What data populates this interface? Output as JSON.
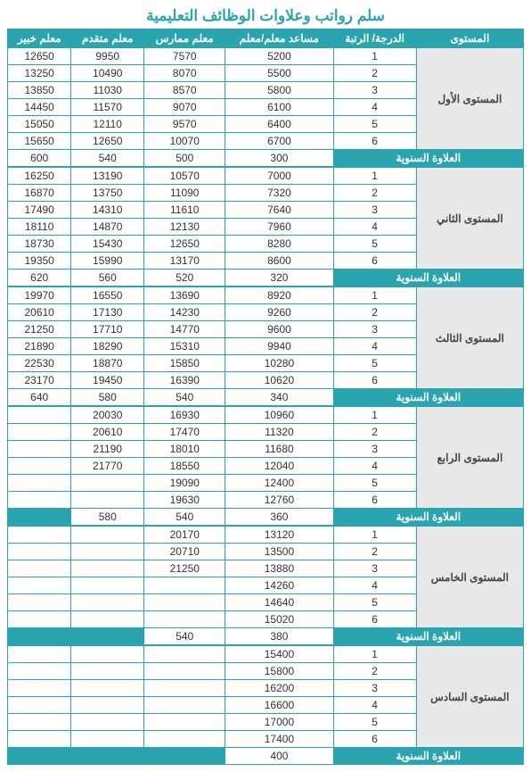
{
  "title": "سلم رواتب وعلاوات الوظائف التعليمية",
  "headers": [
    "المستوى",
    "الدرجة/ الرتبة",
    "مساعد معلم/معلم",
    "معلم ممارس",
    "معلم متقدم",
    "معلم خبير"
  ],
  "allowance_label": "العلاوة السنوية",
  "levels": [
    {
      "name": "المستوى الأول",
      "rows": [
        [
          "1",
          "5200",
          "7570",
          "9950",
          "12650"
        ],
        [
          "2",
          "5500",
          "8070",
          "10490",
          "13250"
        ],
        [
          "3",
          "5800",
          "8570",
          "11030",
          "13850"
        ],
        [
          "4",
          "6100",
          "9070",
          "11570",
          "14450"
        ],
        [
          "5",
          "6400",
          "9570",
          "12110",
          "15050"
        ],
        [
          "6",
          "6700",
          "10070",
          "12650",
          "15650"
        ]
      ],
      "allowance": [
        "300",
        "500",
        "540",
        "600"
      ]
    },
    {
      "name": "المستوى الثاني",
      "rows": [
        [
          "1",
          "7000",
          "10570",
          "13190",
          "16250"
        ],
        [
          "2",
          "7320",
          "11090",
          "13750",
          "16870"
        ],
        [
          "3",
          "7640",
          "11610",
          "14310",
          "17490"
        ],
        [
          "4",
          "7960",
          "12130",
          "14870",
          "18110"
        ],
        [
          "5",
          "8280",
          "12650",
          "15430",
          "18730"
        ],
        [
          "6",
          "8600",
          "13170",
          "15990",
          "19350"
        ]
      ],
      "allowance": [
        "320",
        "520",
        "560",
        "620"
      ]
    },
    {
      "name": "المستوى الثالث",
      "rows": [
        [
          "1",
          "8920",
          "13690",
          "16550",
          "19970"
        ],
        [
          "2",
          "9260",
          "14230",
          "17130",
          "20610"
        ],
        [
          "3",
          "9600",
          "14770",
          "17710",
          "21250"
        ],
        [
          "4",
          "9940",
          "15310",
          "18290",
          "21890"
        ],
        [
          "5",
          "10280",
          "15850",
          "18870",
          "22530"
        ],
        [
          "6",
          "10620",
          "16390",
          "19450",
          "23170"
        ]
      ],
      "allowance": [
        "340",
        "540",
        "580",
        "640"
      ]
    },
    {
      "name": "المستوى الرابع",
      "rows": [
        [
          "1",
          "10960",
          "16930",
          "20030",
          ""
        ],
        [
          "2",
          "11320",
          "17470",
          "20610",
          ""
        ],
        [
          "3",
          "11680",
          "18010",
          "21190",
          ""
        ],
        [
          "4",
          "12040",
          "18550",
          "21770",
          ""
        ],
        [
          "5",
          "12400",
          "19090",
          "",
          ""
        ],
        [
          "6",
          "12760",
          "19630",
          "",
          ""
        ]
      ],
      "allowance": [
        "360",
        "540",
        "580",
        ""
      ]
    },
    {
      "name": "المستوى الخامس",
      "rows": [
        [
          "1",
          "13120",
          "20170",
          "",
          ""
        ],
        [
          "2",
          "13500",
          "20710",
          "",
          ""
        ],
        [
          "3",
          "13880",
          "21250",
          "",
          ""
        ],
        [
          "4",
          "14260",
          "",
          "",
          ""
        ],
        [
          "5",
          "14640",
          "",
          "",
          ""
        ],
        [
          "6",
          "15020",
          "",
          "",
          ""
        ]
      ],
      "allowance": [
        "380",
        "540",
        "",
        ""
      ]
    },
    {
      "name": "المستوى السادس",
      "rows": [
        [
          "1",
          "15400",
          "",
          "",
          ""
        ],
        [
          "2",
          "15800",
          "",
          "",
          ""
        ],
        [
          "3",
          "16200",
          "",
          "",
          ""
        ],
        [
          "4",
          "16600",
          "",
          "",
          ""
        ],
        [
          "5",
          "17000",
          "",
          "",
          ""
        ],
        [
          "6",
          "17400",
          "",
          "",
          ""
        ]
      ],
      "allowance": [
        "400",
        "",
        "",
        ""
      ]
    }
  ]
}
